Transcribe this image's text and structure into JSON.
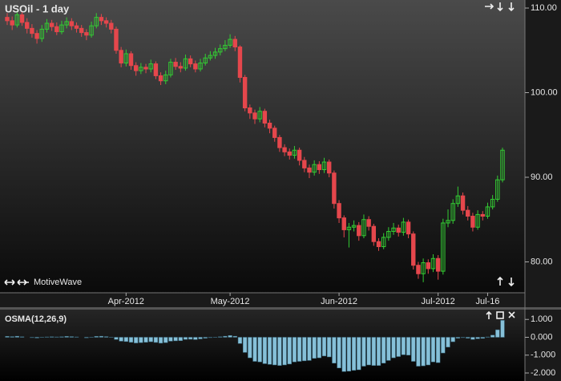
{
  "chart_data": [
    {
      "type": "candlestick",
      "title": "USOil - 1 day",
      "annotation": "MotiveWave",
      "up_color": "#33cc33",
      "down_color": "#e5474c",
      "categories": [
        null,
        null,
        null,
        null,
        null,
        null,
        null,
        null,
        null,
        null,
        null,
        null,
        null,
        null,
        null,
        null,
        null,
        null,
        null,
        null,
        null,
        null,
        null,
        null,
        "Apr-2012",
        null,
        null,
        null,
        null,
        null,
        null,
        null,
        null,
        null,
        null,
        null,
        null,
        null,
        null,
        null,
        null,
        null,
        null,
        null,
        null,
        "May-2012",
        null,
        null,
        null,
        null,
        null,
        null,
        null,
        null,
        null,
        null,
        null,
        null,
        null,
        null,
        null,
        null,
        null,
        null,
        null,
        null,
        null,
        "Jun-2012",
        null,
        null,
        null,
        null,
        null,
        null,
        null,
        null,
        null,
        null,
        null,
        null,
        null,
        null,
        null,
        null,
        null,
        null,
        null,
        "Jul-2012",
        null,
        null,
        null,
        null,
        null,
        null,
        null,
        null,
        null,
        "Jul-16",
        null,
        null,
        null
      ],
      "open": [
        108.9,
        108.5,
        108.0,
        109.2,
        108.3,
        107.6,
        107.0,
        106.4,
        107.5,
        108.2,
        107.8,
        107.2,
        108.0,
        108.4,
        107.9,
        107.6,
        107.1,
        106.8,
        107.9,
        108.9,
        108.5,
        108.2,
        107.5,
        105.0,
        103.5,
        104.6,
        103.2,
        102.6,
        103.0,
        102.8,
        103.4,
        102.0,
        101.4,
        102.1,
        103.6,
        103.1,
        102.9,
        104.0,
        103.4,
        102.8,
        103.5,
        104.1,
        104.4,
        104.8,
        105.2,
        105.6,
        106.3,
        105.4,
        101.8,
        98.2,
        97.6,
        96.9,
        97.8,
        96.4,
        95.8,
        94.7,
        93.5,
        93.0,
        92.6,
        93.2,
        92.0,
        91.1,
        90.6,
        91.5,
        90.9,
        91.8,
        90.5,
        86.9,
        85.2,
        83.8,
        84.1,
        84.3,
        83.1,
        85.0,
        84.2,
        82.4,
        81.8,
        82.9,
        83.6,
        84.0,
        83.5,
        84.7,
        83.3,
        79.6,
        78.6,
        79.9,
        79.2,
        80.4,
        78.9,
        84.6,
        84.9,
        86.9,
        87.8,
        86.1,
        85.4,
        84.1,
        85.6,
        85.4,
        86.5,
        87.4,
        89.7
      ],
      "high": [
        109.4,
        109.0,
        109.7,
        109.6,
        108.8,
        108.1,
        107.4,
        108.0,
        108.7,
        108.6,
        108.3,
        108.5,
        108.9,
        108.8,
        108.3,
        108.0,
        107.5,
        108.4,
        109.4,
        109.3,
        108.9,
        108.6,
        107.8,
        105.4,
        105.1,
        104.9,
        103.6,
        103.5,
        103.4,
        103.9,
        103.7,
        102.4,
        102.6,
        104.0,
        104.1,
        103.6,
        104.5,
        104.4,
        103.8,
        104.0,
        104.6,
        104.9,
        105.3,
        105.7,
        106.2,
        106.9,
        106.7,
        105.6,
        102.1,
        98.6,
        98.0,
        98.3,
        98.1,
        96.8,
        96.1,
        95.0,
        93.9,
        93.4,
        93.7,
        93.5,
        92.4,
        91.5,
        92.0,
        91.9,
        92.3,
        92.1,
        90.8,
        87.3,
        85.5,
        84.6,
        84.9,
        84.7,
        85.6,
        85.4,
        84.5,
        82.8,
        83.4,
        84.1,
        84.6,
        84.4,
        85.2,
        85.0,
        83.6,
        80.0,
        80.4,
        80.3,
        80.9,
        80.8,
        85.1,
        86.2,
        87.4,
        88.9,
        88.2,
        86.6,
        85.8,
        86.1,
        86.0,
        87.0,
        87.9,
        90.2,
        93.5
      ],
      "low": [
        108.0,
        107.4,
        107.7,
        107.9,
        107.0,
        106.5,
        105.8,
        106.0,
        107.1,
        107.3,
        106.8,
        106.9,
        107.6,
        107.4,
        107.1,
        106.6,
        106.2,
        106.5,
        107.6,
        108.0,
        107.7,
        107.0,
        104.6,
        103.0,
        103.1,
        102.7,
        102.0,
        102.2,
        102.3,
        102.4,
        101.6,
        100.9,
        101.0,
        101.8,
        102.7,
        102.4,
        102.6,
        103.0,
        102.4,
        102.5,
        103.2,
        103.8,
        104.0,
        104.4,
        104.9,
        105.3,
        104.9,
        101.2,
        97.8,
        96.9,
        96.3,
        96.5,
        95.9,
        95.2,
        94.2,
        93.0,
        92.5,
        92.1,
        92.2,
        91.4,
        90.6,
        89.9,
        90.2,
        90.4,
        90.5,
        90.0,
        86.3,
        84.6,
        82.9,
        81.7,
        83.6,
        82.5,
        82.8,
        83.7,
        81.9,
        81.3,
        81.5,
        82.5,
        83.2,
        83.0,
        83.1,
        82.8,
        79.1,
        78.0,
        77.6,
        78.6,
        78.8,
        77.9,
        78.5,
        84.1,
        84.5,
        86.5,
        85.6,
        84.9,
        83.6,
        83.8,
        84.9,
        85.1,
        86.2,
        87.1,
        89.4
      ],
      "close": [
        108.5,
        108.0,
        109.2,
        108.3,
        107.6,
        107.0,
        106.4,
        107.5,
        108.2,
        107.8,
        107.2,
        108.0,
        108.4,
        107.9,
        107.6,
        107.1,
        106.8,
        107.9,
        108.9,
        108.5,
        108.2,
        107.5,
        105.0,
        103.5,
        104.6,
        103.2,
        102.6,
        103.0,
        102.8,
        103.4,
        102.0,
        101.4,
        102.1,
        103.6,
        103.1,
        102.9,
        104.0,
        103.4,
        102.8,
        103.5,
        104.1,
        104.4,
        104.8,
        105.2,
        105.6,
        106.3,
        105.4,
        101.8,
        98.2,
        97.6,
        96.9,
        97.8,
        96.4,
        95.8,
        94.7,
        93.5,
        93.0,
        92.6,
        93.2,
        92.0,
        91.1,
        90.6,
        91.5,
        90.9,
        91.8,
        90.5,
        86.9,
        85.2,
        83.8,
        84.1,
        84.3,
        83.1,
        85.0,
        84.2,
        82.4,
        81.8,
        82.9,
        83.6,
        84.0,
        83.5,
        84.7,
        83.3,
        79.6,
        78.6,
        79.9,
        79.2,
        80.4,
        78.9,
        84.6,
        84.9,
        86.9,
        87.8,
        86.1,
        85.4,
        84.1,
        85.6,
        85.4,
        86.5,
        87.4,
        89.7,
        93.2
      ],
      "ylim": [
        76.35,
        110.95
      ],
      "yticks": [
        {
          "value": 110,
          "label": "110.00"
        },
        {
          "value": 100,
          "label": "100.00"
        },
        {
          "value": 90,
          "label": "90.00"
        },
        {
          "value": 80,
          "label": "80.00"
        }
      ]
    },
    {
      "type": "bar",
      "title": "OSMA(12,26,9)",
      "color": "#86c0d8",
      "values": [
        0.05,
        0.04,
        0.06,
        0.03,
        0.0,
        -0.02,
        -0.04,
        -0.01,
        0.02,
        0.03,
        0.02,
        0.03,
        0.05,
        0.04,
        0.02,
        0.0,
        -0.03,
        0.01,
        0.05,
        0.06,
        0.04,
        0.01,
        -0.12,
        -0.22,
        -0.24,
        -0.28,
        -0.32,
        -0.3,
        -0.28,
        -0.25,
        -0.29,
        -0.33,
        -0.3,
        -0.22,
        -0.2,
        -0.19,
        -0.12,
        -0.11,
        -0.13,
        -0.09,
        -0.05,
        -0.02,
        0.01,
        0.03,
        0.06,
        0.1,
        0.06,
        -0.35,
        -0.85,
        -1.15,
        -1.35,
        -1.38,
        -1.48,
        -1.52,
        -1.55,
        -1.58,
        -1.55,
        -1.5,
        -1.38,
        -1.35,
        -1.32,
        -1.3,
        -1.18,
        -1.15,
        -1.05,
        -1.1,
        -1.45,
        -1.72,
        -1.92,
        -1.9,
        -1.85,
        -1.82,
        -1.62,
        -1.55,
        -1.58,
        -1.58,
        -1.45,
        -1.3,
        -1.15,
        -1.08,
        -0.98,
        -1.0,
        -1.35,
        -1.62,
        -1.6,
        -1.55,
        -1.38,
        -1.42,
        -0.88,
        -0.55,
        -0.25,
        -0.05,
        -0.02,
        -0.05,
        -0.12,
        -0.08,
        -0.06,
        0.02,
        0.12,
        0.42,
        0.95
      ],
      "ylim": [
        -2.45,
        1.55
      ],
      "yticks": [
        {
          "value": 1,
          "label": "1.000"
        },
        {
          "value": 0,
          "label": "0.000"
        },
        {
          "value": -1,
          "label": "-1.000"
        },
        {
          "value": -2,
          "label": "-2.000"
        }
      ]
    }
  ]
}
